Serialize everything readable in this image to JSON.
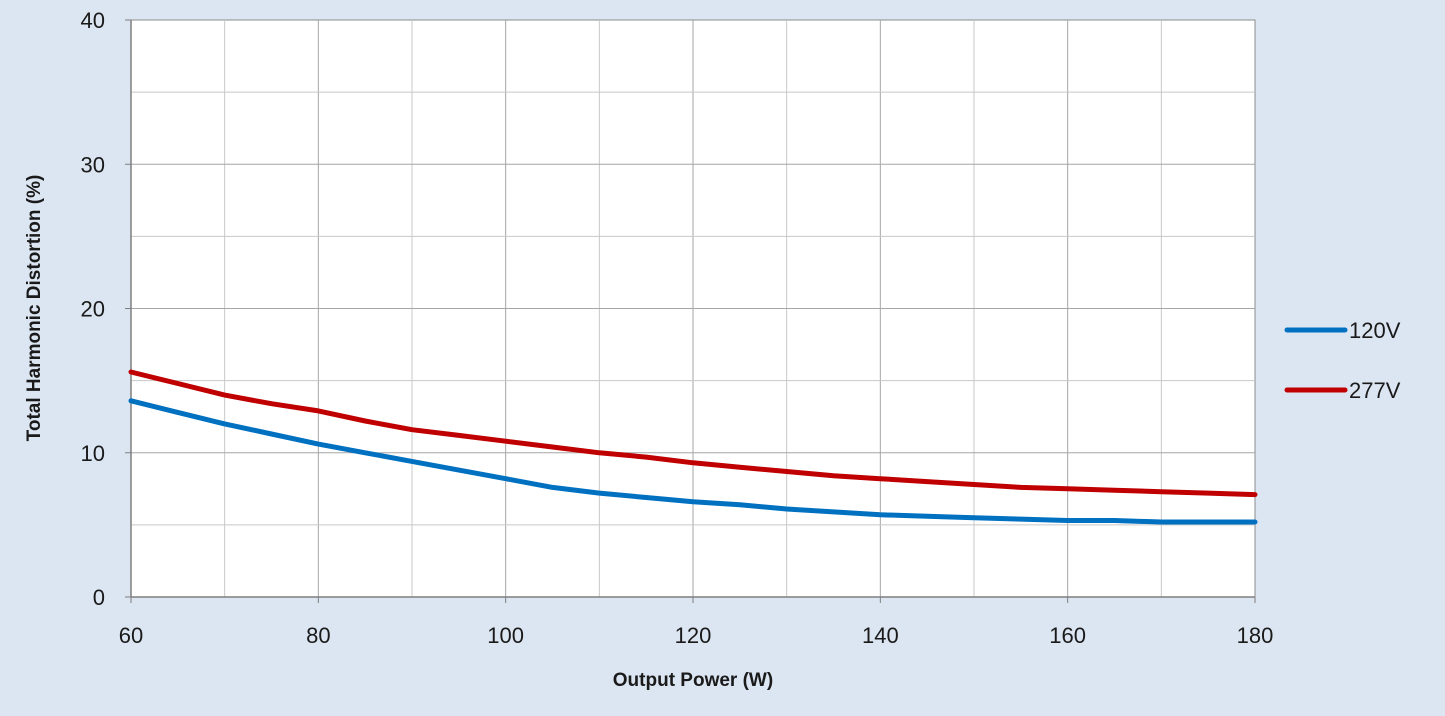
{
  "chart_data": {
    "type": "line",
    "xlabel": "Output Power (W)",
    "ylabel": "Total Harmonic Distortion (%)",
    "xlim": [
      60,
      180
    ],
    "ylim": [
      0,
      40
    ],
    "x_ticks": [
      "60",
      "80",
      "100",
      "120",
      "140",
      "160",
      "180"
    ],
    "y_ticks": [
      "0",
      "10",
      "20",
      "30",
      "40"
    ],
    "grid": true,
    "legend_position": "right",
    "x": [
      60,
      65,
      70,
      75,
      80,
      85,
      90,
      95,
      100,
      105,
      110,
      115,
      120,
      125,
      130,
      135,
      140,
      145,
      150,
      155,
      160,
      165,
      170,
      175,
      180
    ],
    "series": [
      {
        "name": "120V",
        "color": "#0070c0",
        "values": [
          13.6,
          12.8,
          12.0,
          11.3,
          10.6,
          10.0,
          9.4,
          8.8,
          8.2,
          7.6,
          7.2,
          6.9,
          6.6,
          6.4,
          6.1,
          5.9,
          5.7,
          5.6,
          5.5,
          5.4,
          5.3,
          5.3,
          5.2,
          5.2,
          5.2
        ]
      },
      {
        "name": "277V",
        "color": "#c00000",
        "values": [
          15.6,
          14.8,
          14.0,
          13.4,
          12.9,
          12.2,
          11.6,
          11.2,
          10.8,
          10.4,
          10.0,
          9.7,
          9.3,
          9.0,
          8.7,
          8.4,
          8.2,
          8.0,
          7.8,
          7.6,
          7.5,
          7.4,
          7.3,
          7.2,
          7.1
        ]
      }
    ]
  }
}
